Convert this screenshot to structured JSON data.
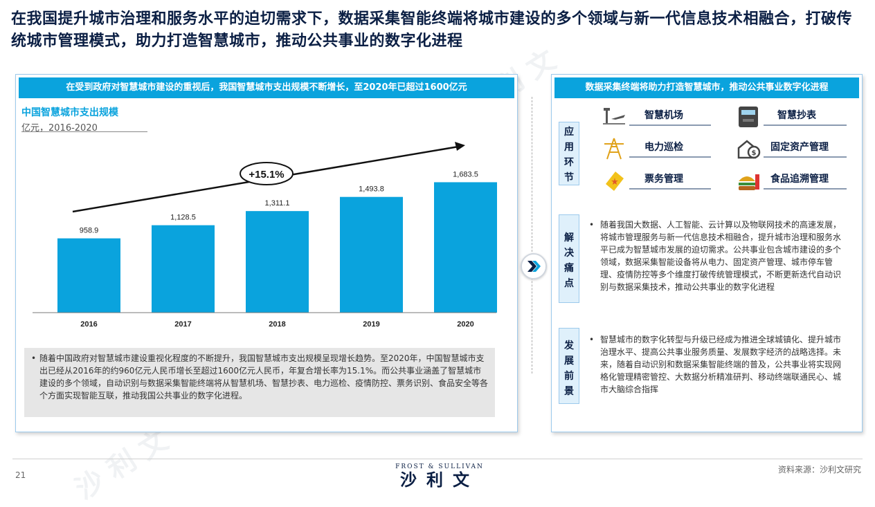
{
  "title": "在我国提升城市治理和服务水平的迫切需求下，数据采集智能终端将城市建设的多个领域与新一代信息技术相融合，打破传统城市管理模式，助力打造智慧城市，推动公共事业的数字化进程",
  "left_panel": {
    "header": "在受到政府对智慧城市建设的重视后，我国智慧城市支出规模不断增长，至2020年已超过1600亿元",
    "chart_title": "中国智慧城市支出规模",
    "chart_unit": "亿元，2016-2020",
    "cagr_label": "+15.1%",
    "bullet": "随着中国政府对智慧城市建设重视化程度的不断提升，我国智慧城市支出规模呈现增长趋势。至2020年，中国智慧城市支出已经从2016年的约960亿元人民币增长至超过1600亿元人民币，年复合增长率为15.1%。而公共事业涵盖了智慧城市建设的多个领域，自动识别与数据采集智能终端将从智慧机场、智慧抄表、电力巡检、疫情防控、票务识别、食品安全等各个方面实现智能互联，推动我国公共事业的数字化进程。"
  },
  "chart_data": {
    "type": "bar",
    "title": "中国智慧城市支出规模",
    "ylabel": "亿元，2016-2020",
    "categories": [
      "2016",
      "2017",
      "2018",
      "2019",
      "2020"
    ],
    "values": [
      958.9,
      1128.5,
      1311.1,
      1493.8,
      1683.5
    ],
    "value_labels": [
      "958.9",
      "1,128.5",
      "1,311.1",
      "1,493.8",
      "1,683.5"
    ],
    "annotation": "+15.1%",
    "bar_color": "#0aa3dd",
    "ylim": [
      0,
      2000
    ]
  },
  "right_panel": {
    "header": "数据采集终端将助力打造智慧城市，推动公共事业数字化进程",
    "tag_applications": "应用环节",
    "tag_pain_points": "解决痛点",
    "tag_prospects": "发展前景",
    "applications": [
      {
        "label": "智慧机场",
        "icon": "airport-icon"
      },
      {
        "label": "智慧抄表",
        "icon": "meter-icon"
      },
      {
        "label": "电力巡检",
        "icon": "power-tower-icon"
      },
      {
        "label": "固定资产管理",
        "icon": "asset-icon"
      },
      {
        "label": "票务管理",
        "icon": "ticket-icon"
      },
      {
        "label": "食品追溯管理",
        "icon": "food-icon"
      }
    ],
    "pain_points": "随着我国大数据、人工智能、云计算以及物联网技术的高速发展，将城市管理服务与新一代信息技术相融合，提升城市治理和服务水平已成为智慧城市发展的迫切需求。公共事业包含城市建设的多个领域，数据采集智能设备将从电力、固定资产管理、城市停车管理、疫情防控等多个维度打破传统管理模式，不断更新迭代自动识别与数据采集技术，推动公共事业的数字化进程",
    "prospects": "智慧城市的数字化转型与升级已经成为推进全球城镇化、提升城市治理水平、提高公共事业服务质量、发展数字经济的战略选择。未来，随着自动识别和数据采集智能终端的普及，公共事业将实现网格化管理精密管控、大数据分析精准研判、移动终端联通民心、城市大脑综合指挥"
  },
  "footer": {
    "page_number": "21",
    "logo_en": "FROST & SULLIVAN",
    "logo_cn": "沙利文",
    "source": "资料来源：沙利文研究"
  },
  "colors": {
    "accent": "#0aa3dd",
    "title": "#0b1f44",
    "tag_bg": "#dff0fb"
  }
}
